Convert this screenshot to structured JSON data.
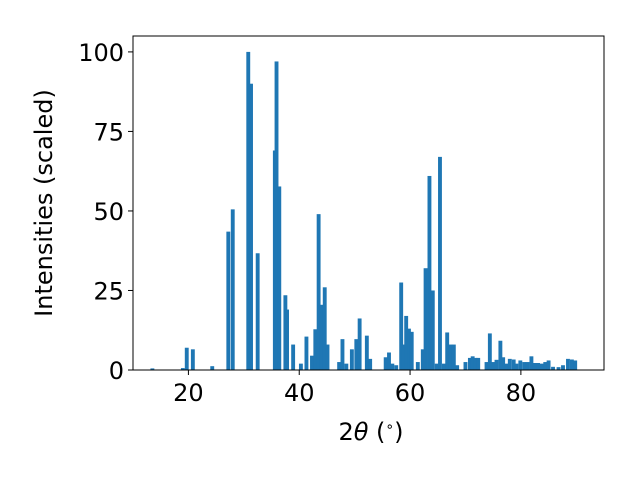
{
  "chart_data": {
    "type": "bar",
    "xlabel_parts": {
      "prefix": "2",
      "theta": "θ",
      "open": " (",
      "deg": "∘",
      "close": ")"
    },
    "ylabel": "Intensities (scaled)",
    "xlim": [
      10,
      95
    ],
    "ylim": [
      0,
      105
    ],
    "xticks": [
      20,
      40,
      60,
      80
    ],
    "yticks": [
      0,
      25,
      50,
      75,
      100
    ],
    "grid": false,
    "bar_width": 0.7,
    "color": "#1f77b4",
    "x": [
      13.5,
      19.0,
      19.7,
      20.8,
      24.3,
      27.2,
      28.0,
      30.8,
      31.3,
      32.5,
      35.6,
      35.9,
      36.4,
      37.5,
      37.8,
      38.9,
      40.3,
      41.3,
      42.3,
      42.9,
      43.5,
      44.0,
      44.6,
      45.1,
      47.2,
      47.8,
      48.5,
      49.5,
      50.3,
      50.9,
      52.2,
      52.8,
      55.6,
      56.2,
      56.8,
      57.5,
      58.4,
      58.8,
      59.3,
      59.8,
      60.3,
      61.4,
      62.3,
      62.8,
      63.5,
      64.1,
      64.8,
      65.4,
      66.1,
      66.7,
      67.3,
      67.9,
      68.5,
      70.0,
      70.8,
      71.3,
      71.8,
      72.3,
      73.8,
      74.4,
      75.0,
      75.6,
      76.3,
      76.8,
      77.4,
      78.0,
      78.7,
      79.2,
      79.9,
      80.6,
      81.2,
      81.9,
      82.5,
      83.1,
      83.8,
      84.4,
      85.0,
      85.8,
      86.8,
      87.6,
      88.5,
      89.2,
      89.8
    ],
    "values": [
      0.5,
      0.6,
      7.0,
      6.5,
      1.2,
      43.5,
      50.5,
      100.0,
      90.0,
      36.7,
      69.0,
      97.0,
      57.7,
      23.5,
      19.0,
      8.0,
      2.0,
      10.5,
      4.5,
      12.8,
      49.0,
      20.5,
      26.0,
      8.0,
      2.5,
      9.7,
      2.0,
      6.5,
      9.7,
      16.2,
      10.8,
      3.5,
      4.0,
      5.5,
      2.0,
      1.5,
      27.5,
      8.0,
      17.0,
      13.0,
      12.0,
      2.5,
      6.5,
      32.0,
      61.0,
      25.0,
      2.0,
      67.0,
      2.0,
      11.8,
      8.0,
      8.0,
      1.5,
      2.5,
      3.8,
      4.3,
      3.8,
      3.8,
      2.5,
      11.5,
      2.5,
      3.2,
      9.2,
      4.0,
      2.0,
      3.5,
      3.3,
      2.0,
      3.0,
      2.5,
      2.5,
      4.3,
      2.2,
      2.2,
      2.0,
      2.5,
      3.0,
      1.0,
      0.9,
      1.5,
      3.5,
      3.3,
      3.0
    ]
  }
}
